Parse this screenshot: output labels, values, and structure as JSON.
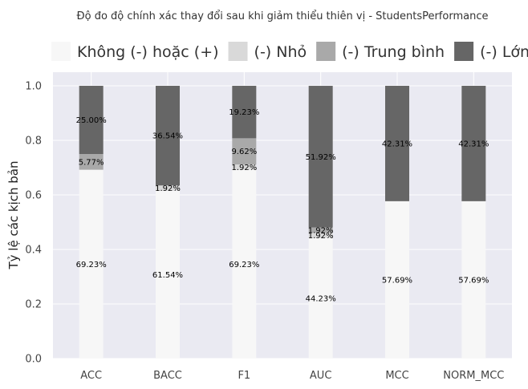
{
  "chart_data": {
    "type": "bar",
    "stacked": true,
    "title": "Độ đo độ chính xác thay đổi sau khi giảm thiểu thiên vị - StudentsPerformance",
    "xlabel": "",
    "ylabel": "Tỷ lệ các kịch bản",
    "ylim": [
      0,
      1.05
    ],
    "yticks": [
      0.0,
      0.2,
      0.4,
      0.6,
      0.8,
      1.0
    ],
    "ytick_labels": [
      "0.0",
      "0.2",
      "0.4",
      "0.6",
      "0.8",
      "1.0"
    ],
    "grid": true,
    "legend_position": "top",
    "categories": [
      "ACC",
      "BACC",
      "F1",
      "AUC",
      "MCC",
      "NORM_MCC"
    ],
    "series": [
      {
        "name": "Không (-) hoặc (+)",
        "color": "#f7f7f7",
        "values": [
          0.6923,
          0.6154,
          0.6923,
          0.4423,
          0.5769,
          0.5769
        ],
        "labels": [
          "69.23%",
          "61.54%",
          "69.23%",
          "44.23%",
          "57.69%",
          "57.69%"
        ]
      },
      {
        "name": "(-) Nhỏ",
        "color": "#d9d9d9",
        "values": [
          0.0,
          0.0192,
          0.0192,
          0.0192,
          0.0,
          0.0
        ],
        "labels": [
          "",
          "1.92%",
          "1.92%",
          "1.92%",
          "",
          ""
        ]
      },
      {
        "name": "(-) Trung bình",
        "color": "#a9a9a9",
        "values": [
          0.0577,
          0.0,
          0.0962,
          0.0192,
          0.0,
          0.0
        ],
        "labels": [
          "5.77%",
          "",
          "9.62%",
          "1.92%",
          "",
          ""
        ]
      },
      {
        "name": "(-) Lớn",
        "color": "#666666",
        "values": [
          0.25,
          0.3654,
          0.1923,
          0.5192,
          0.4231,
          0.4231
        ],
        "labels": [
          "25.00%",
          "36.54%",
          "19.23%",
          "51.92%",
          "42.31%",
          "42.31%"
        ]
      }
    ]
  },
  "colors": {
    "plot_background": "#eaeaf2",
    "grid": "#ffffff"
  }
}
